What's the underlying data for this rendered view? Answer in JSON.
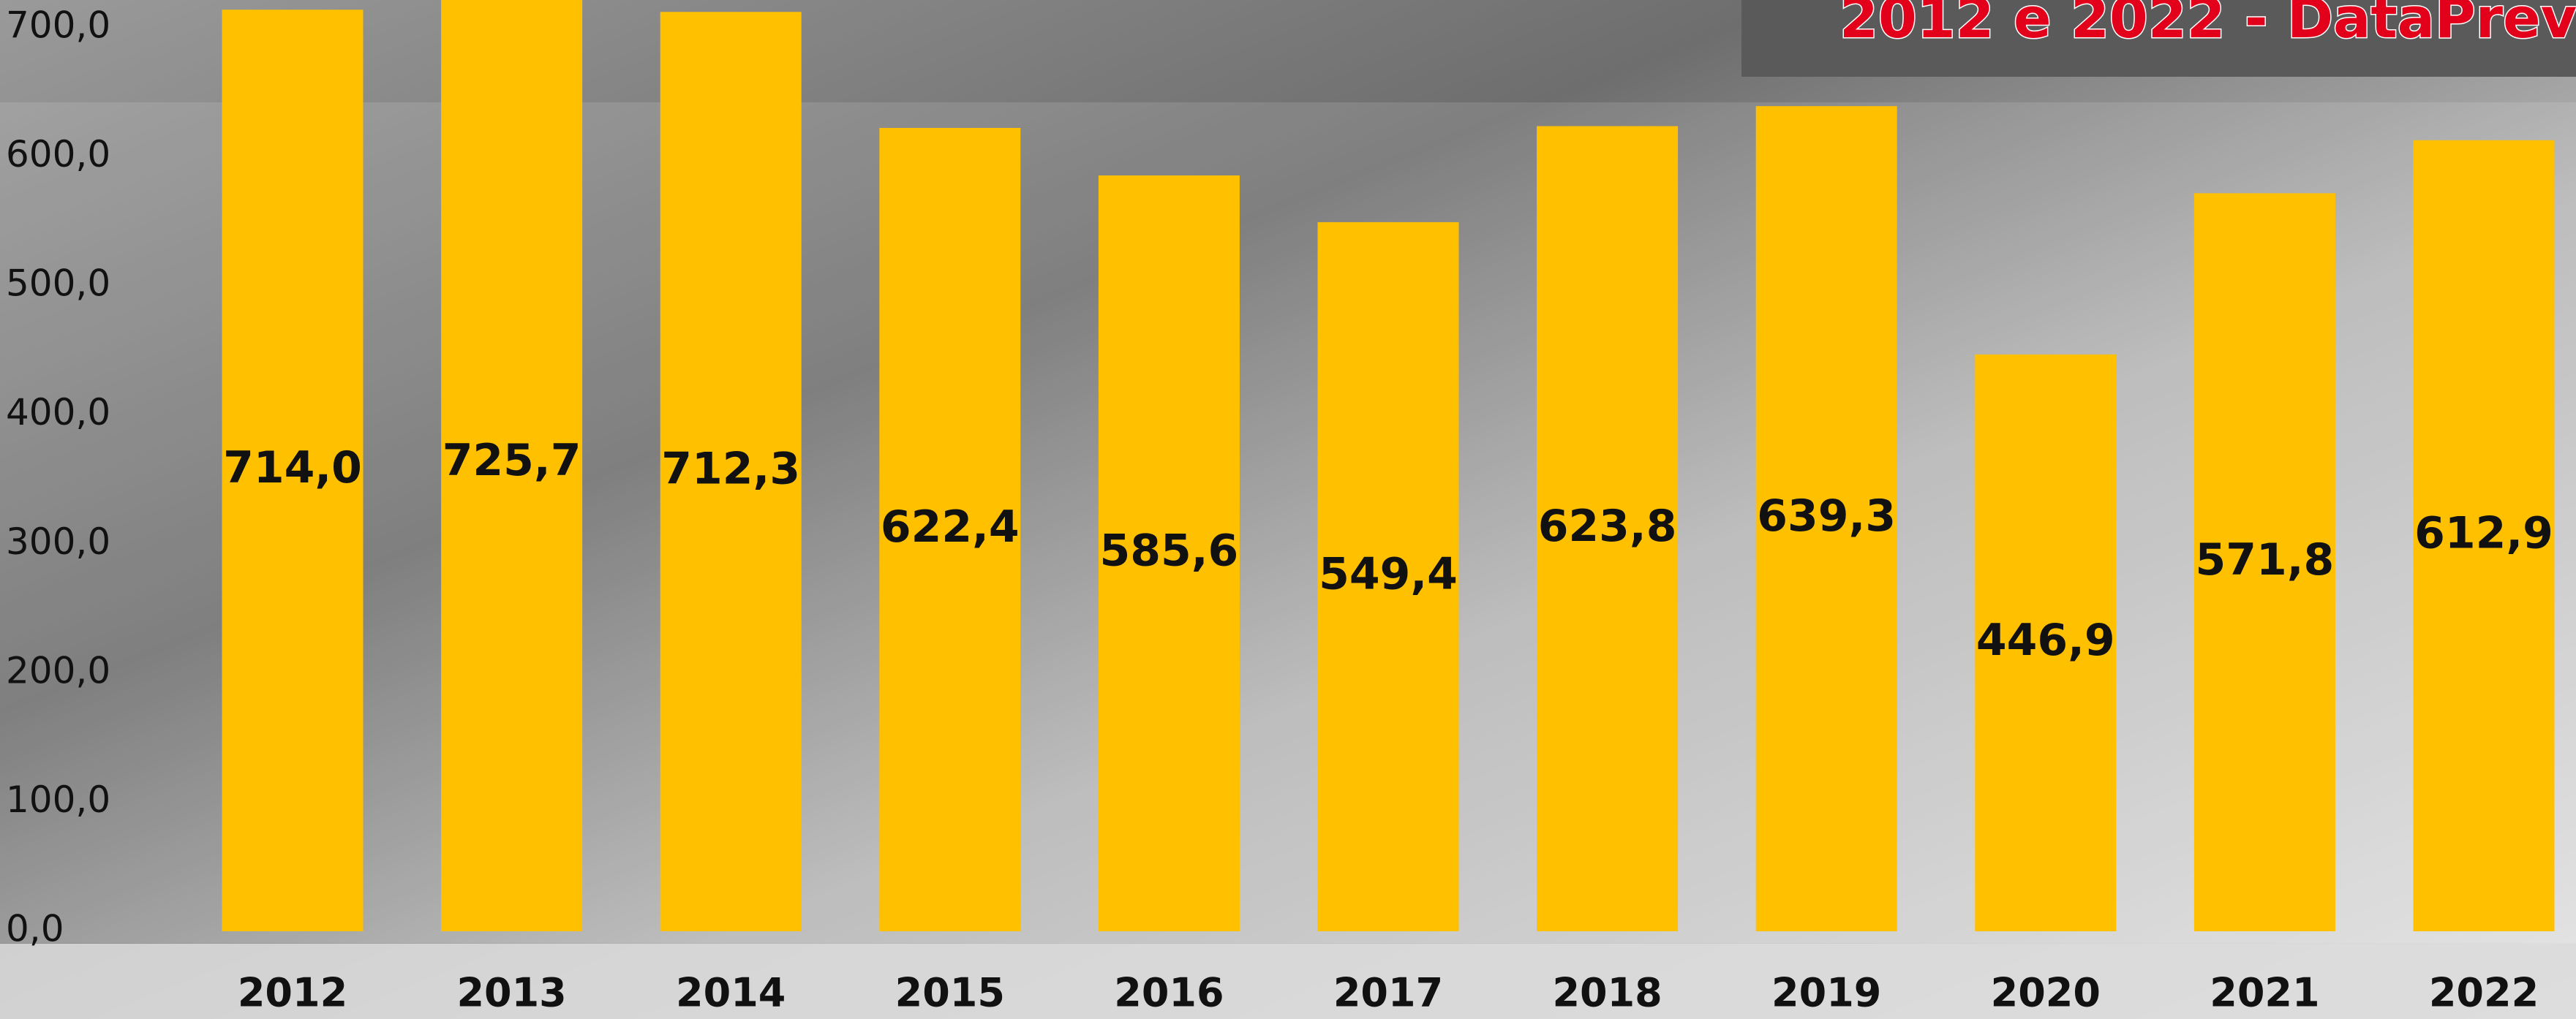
{
  "chart_data": {
    "type": "bar",
    "title": "2012 e 2022 - DataPrev",
    "categories": [
      "2012",
      "2013",
      "2014",
      "2015",
      "2016",
      "2017",
      "2018",
      "2019",
      "2020",
      "2021",
      "2022"
    ],
    "values": [
      714.0,
      725.7,
      712.3,
      622.4,
      585.6,
      549.4,
      623.8,
      639.3,
      446.9,
      571.8,
      612.9
    ],
    "value_labels": [
      "714,0",
      "725,7",
      "712,3",
      "622,4",
      "585,6",
      "549,4",
      "623,8",
      "639,3",
      "446,9",
      "571,8",
      "612,9"
    ],
    "color": "#ffc000",
    "ylim": [
      0,
      700
    ],
    "yticks": [
      {
        "value": 0,
        "label": "0,0"
      },
      {
        "value": 100,
        "label": "100,0"
      },
      {
        "value": 200,
        "label": "200,0"
      },
      {
        "value": 300,
        "label": "300,0"
      },
      {
        "value": 400,
        "label": "400,0"
      },
      {
        "value": 500,
        "label": "500,0"
      },
      {
        "value": 600,
        "label": "600,0"
      },
      {
        "value": 700,
        "label": "700,0"
      }
    ],
    "grid": false
  }
}
